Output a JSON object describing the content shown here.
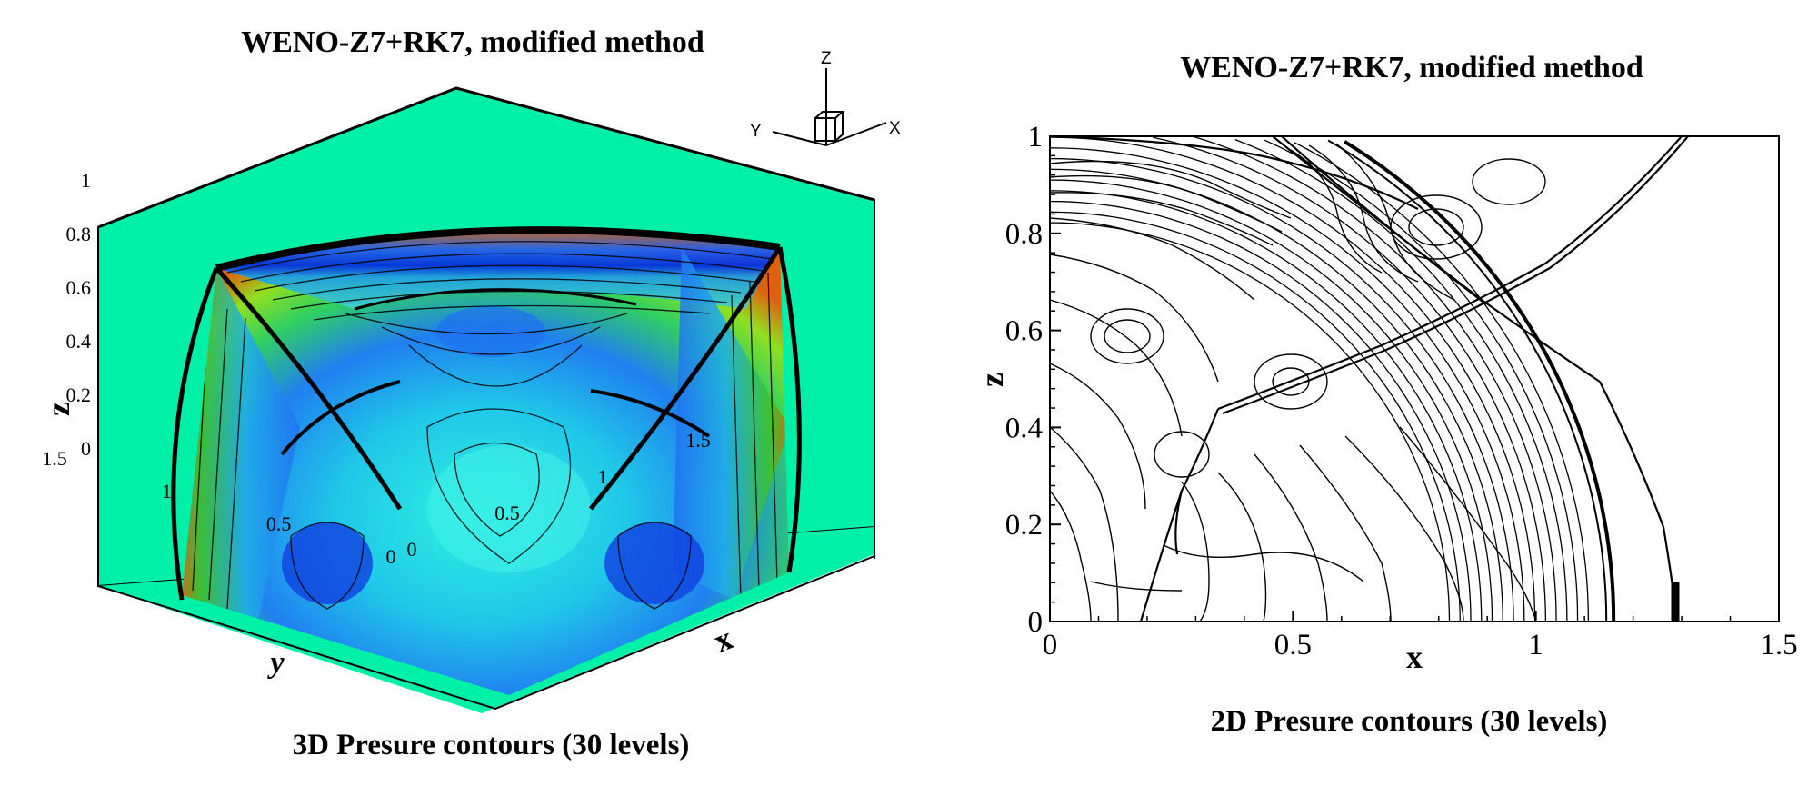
{
  "colors": {
    "background_plane": "#00f0a8",
    "contour_line": "#000000",
    "low_pressure": "#0030e0",
    "high_pressure": "#e05010"
  },
  "left": {
    "title": "WENO-Z7+RK7, modified method",
    "caption": "3D Presure contours (30 levels)",
    "axis_triad": {
      "z": "Z",
      "y": "Y",
      "x": "X"
    }
  },
  "right": {
    "title": "WENO-Z7+RK7, modified method",
    "caption": "2D Presure contours (30 levels)"
  },
  "chart_data": [
    {
      "type": "heatmap",
      "view": "3D",
      "title": "WENO-Z7+RK7, modified method",
      "subtitle": "3D Presure contours (30 levels)",
      "levels": 30,
      "colormap": "blue-green-yellow-red flooded contours",
      "axes": {
        "z": {
          "label": "z",
          "ticks": [
            "0",
            "0.2",
            "0.4",
            "0.6",
            "0.8",
            "1"
          ],
          "range": [
            0,
            1
          ]
        },
        "y": {
          "label": "y",
          "ticks": [
            "1.5",
            "1",
            "0.5",
            "0"
          ],
          "range": [
            0,
            1.5
          ]
        },
        "x": {
          "label": "x",
          "ticks": [
            "0",
            "0.5",
            "1",
            "1.5"
          ],
          "range": [
            0,
            1.5
          ]
        }
      },
      "features": {
        "shock_front_radius": 1.16,
        "triple_point_height": 0.6
      }
    },
    {
      "type": "heatmap",
      "view": "2D",
      "title": "WENO-Z7+RK7, modified method",
      "subtitle": "2D Presure contours (30 levels)",
      "levels": 30,
      "xlabel": "x",
      "ylabel": "z",
      "xlim": [
        0,
        1.5
      ],
      "ylim": [
        0,
        1
      ],
      "xticks": [
        "0",
        "0.5",
        "1",
        "1.5"
      ],
      "yticks": [
        "0",
        "0.2",
        "0.4",
        "0.6",
        "0.8",
        "1"
      ],
      "features": {
        "shock_front_radius": 1.16,
        "diagonal_shock_crossing": [
          0.66,
          0.6
        ]
      }
    }
  ]
}
